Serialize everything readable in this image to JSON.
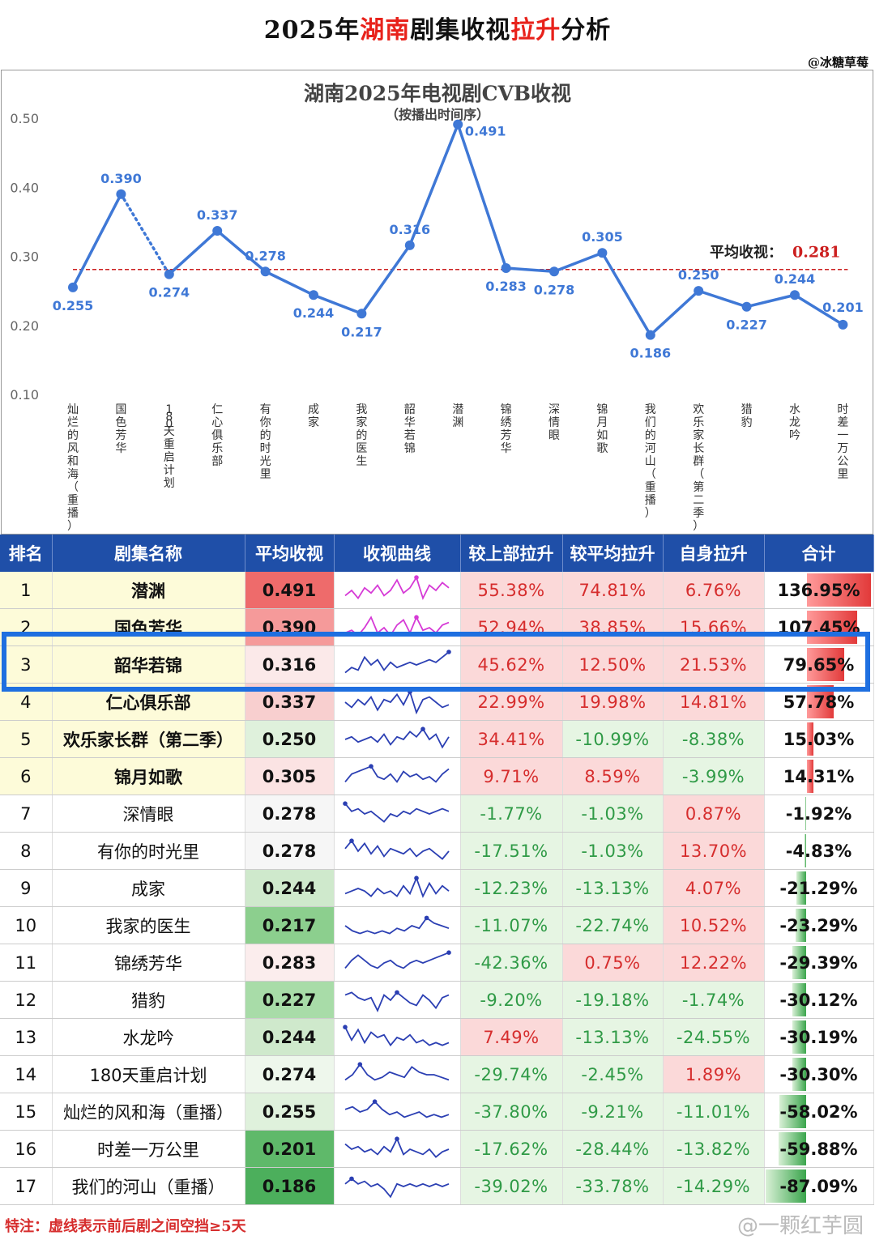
{
  "header": {
    "title_pre": "2025年",
    "title_red1": "湖南",
    "title_mid": "剧集收视",
    "title_red2": "拉升",
    "title_post": "分析",
    "handle": "@冰糖草莓"
  },
  "chart_data": {
    "type": "line",
    "title": "湖南2025年电视剧CVB收视",
    "subtitle": "（按播出时间序）",
    "categories": [
      "灿烂的风和海（重播）",
      "国色芳华",
      "180天重启计划",
      "仁心俱乐部",
      "有你的时光里",
      "成家",
      "我家的医生",
      "韶华若锦",
      "潜渊",
      "锦绣芳华",
      "深情眼",
      "锦月如歌",
      "我们的河山（重播）",
      "欢乐家长群（第二季）",
      "猎豹",
      "水龙吟",
      "时差一万公里"
    ],
    "values": [
      0.255,
      0.39,
      0.274,
      0.337,
      0.278,
      0.244,
      0.217,
      0.316,
      0.491,
      0.283,
      0.278,
      0.305,
      0.186,
      0.25,
      0.227,
      0.244,
      0.201
    ],
    "value_labels": [
      "0.255",
      "0.390",
      "0.274",
      "0.337",
      "0.278",
      "0.244",
      "0.217",
      "0.316",
      "0.491",
      "0.283",
      "0.278",
      "0.305",
      "0.186",
      "0.250",
      "0.227",
      "0.244",
      "0.201"
    ],
    "dashed_segment_index": 1,
    "yticks": [
      "0.50",
      "0.40",
      "0.30",
      "0.20",
      "0.10"
    ],
    "ylim": [
      0.1,
      0.5
    ],
    "average": {
      "label": "平均收视：",
      "value": 0.281,
      "value_text": "0.281",
      "color": "#cc1f1f"
    },
    "line_color": "#3f78d6"
  },
  "table": {
    "headers": [
      "排名",
      "剧集名称",
      "平均收视",
      "收视曲线",
      "较上部拉升",
      "较平均拉升",
      "自身拉升",
      "合计"
    ],
    "rows": [
      {
        "rank": "1",
        "name": "潜渊",
        "avg": "0.491",
        "avg_color": "#ee6b6b",
        "prev": "55.38%",
        "mean": "74.81%",
        "self": "6.76%",
        "total": "136.95%",
        "total_val": 136.95,
        "bold": true,
        "spark": [
          0.3,
          0.5,
          0.2,
          0.6,
          0.4,
          0.7,
          0.3,
          0.5,
          0.9,
          0.4,
          0.6,
          1.0,
          0.2,
          0.7,
          0.5,
          0.8,
          0.6
        ],
        "spark_color": "#d63ad6",
        "peak": 11
      },
      {
        "rank": "2",
        "name": "国色芳华",
        "avg": "0.390",
        "avg_color": "#f59a9a",
        "prev": "52.94%",
        "mean": "38.85%",
        "self": "15.66%",
        "total": "107.45%",
        "total_val": 107.45,
        "bold": true,
        "spark": [
          0.3,
          0.4,
          0.2,
          0.5,
          0.9,
          0.3,
          0.5,
          0.2,
          0.6,
          0.8,
          0.3,
          0.9,
          0.4,
          0.5,
          0.3,
          0.6,
          0.7
        ],
        "spark_color": "#d63ad6",
        "peak": 11
      },
      {
        "rank": "3",
        "name": "韶华若锦",
        "avg": "0.316",
        "avg_color": "#fbe9e9",
        "prev": "45.62%",
        "mean": "12.50%",
        "self": "21.53%",
        "total": "79.65%",
        "total_val": 79.65,
        "bold": true,
        "spark": [
          0.2,
          0.4,
          0.3,
          0.8,
          0.5,
          0.7,
          0.3,
          0.6,
          0.4,
          0.5,
          0.6,
          0.5,
          0.6,
          0.7,
          0.6,
          0.8,
          1.0
        ],
        "spark_color": "#2b3fb3",
        "peak": 16
      },
      {
        "rank": "4",
        "name": "仁心俱乐部",
        "avg": "0.337",
        "avg_color": "#f8cfcf",
        "prev": "22.99%",
        "mean": "19.98%",
        "self": "14.81%",
        "total": "57.78%",
        "total_val": 57.78,
        "bold": true,
        "spark": [
          0.5,
          0.3,
          0.6,
          0.4,
          0.7,
          0.2,
          0.6,
          0.5,
          0.8,
          0.4,
          0.9,
          0.1,
          0.6,
          0.7,
          0.5,
          0.3,
          0.4
        ],
        "spark_color": "#2b3fb3",
        "peak": 10
      },
      {
        "rank": "5",
        "name": "欢乐家长群（第二季）",
        "avg": "0.250",
        "avg_color": "#dff1dc",
        "prev": "34.41%",
        "mean": "-10.99%",
        "self": "-8.38%",
        "total": "15.03%",
        "total_val": 15.03,
        "bold": true,
        "spark": [
          0.5,
          0.6,
          0.4,
          0.5,
          0.6,
          0.4,
          0.7,
          0.3,
          0.6,
          0.5,
          0.8,
          0.6,
          0.9,
          0.5,
          0.7,
          0.2,
          0.6
        ],
        "spark_color": "#2b3fb3",
        "peak": 12
      },
      {
        "rank": "6",
        "name": "锦月如歌",
        "avg": "0.305",
        "avg_color": "#fbe3e3",
        "prev": "9.71%",
        "mean": "8.59%",
        "self": "-3.99%",
        "total": "14.31%",
        "total_val": 14.31,
        "bold": true,
        "spark": [
          0.3,
          0.6,
          0.7,
          0.8,
          0.9,
          0.5,
          0.4,
          0.6,
          0.3,
          0.7,
          0.5,
          0.6,
          0.4,
          0.5,
          0.3,
          0.6,
          0.8
        ],
        "spark_color": "#2b3fb3",
        "peak": 4
      },
      {
        "rank": "7",
        "name": "深情眼",
        "avg": "0.278",
        "avg_color": "#f6f6f6",
        "prev": "-1.77%",
        "mean": "-1.03%",
        "self": "0.87%",
        "total": "-1.92%",
        "total_val": -1.92,
        "bold": false,
        "spark": [
          0.9,
          0.6,
          0.7,
          0.5,
          0.6,
          0.4,
          0.2,
          0.5,
          0.4,
          0.6,
          0.5,
          0.7,
          0.6,
          0.5,
          0.6,
          0.7,
          0.6
        ],
        "spark_color": "#2b3fb3",
        "peak": 0
      },
      {
        "rank": "8",
        "name": "有你的时光里",
        "avg": "0.278",
        "avg_color": "#f6f6f6",
        "prev": "-17.51%",
        "mean": "-1.03%",
        "self": "13.70%",
        "total": "-4.83%",
        "total_val": -4.83,
        "bold": false,
        "spark": [
          0.6,
          0.9,
          0.5,
          0.8,
          0.4,
          0.7,
          0.3,
          0.6,
          0.5,
          0.4,
          0.6,
          0.3,
          0.5,
          0.6,
          0.4,
          0.2,
          0.5
        ],
        "spark_color": "#2b3fb3",
        "peak": 1
      },
      {
        "rank": "9",
        "name": "成家",
        "avg": "0.244",
        "avg_color": "#cfe9cc",
        "prev": "-12.23%",
        "mean": "-13.13%",
        "self": "4.07%",
        "total": "-21.29%",
        "total_val": -21.29,
        "bold": false,
        "spark": [
          0.3,
          0.4,
          0.5,
          0.4,
          0.2,
          0.5,
          0.3,
          0.4,
          0.2,
          0.6,
          0.3,
          0.9,
          0.2,
          0.7,
          0.3,
          0.6,
          0.4
        ],
        "spark_color": "#2b3fb3",
        "peak": 11
      },
      {
        "rank": "10",
        "name": "我家的医生",
        "avg": "0.217",
        "avg_color": "#8ccf8e",
        "prev": "-11.07%",
        "mean": "-22.74%",
        "self": "10.52%",
        "total": "-23.29%",
        "total_val": -23.29,
        "bold": false,
        "spark": [
          0.5,
          0.3,
          0.2,
          0.3,
          0.2,
          0.3,
          0.2,
          0.4,
          0.3,
          0.5,
          0.4,
          0.8,
          0.6,
          0.5,
          0.4
        ],
        "spark_color": "#2b3fb3",
        "peak": 11
      },
      {
        "rank": "11",
        "name": "锦绣芳华",
        "avg": "0.283",
        "avg_color": "#fbeded",
        "prev": "-42.36%",
        "mean": "0.75%",
        "self": "12.22%",
        "total": "-29.39%",
        "total_val": -29.39,
        "bold": false,
        "spark": [
          0.3,
          0.6,
          0.8,
          0.6,
          0.4,
          0.3,
          0.5,
          0.6,
          0.4,
          0.3,
          0.5,
          0.6,
          0.5,
          0.6,
          0.7,
          0.8,
          0.9
        ],
        "spark_color": "#2b3fb3",
        "peak": 16
      },
      {
        "rank": "12",
        "name": "猎豹",
        "avg": "0.227",
        "avg_color": "#a8dca8",
        "prev": "-9.20%",
        "mean": "-19.18%",
        "self": "-1.74%",
        "total": "-30.12%",
        "total_val": -30.12,
        "bold": false,
        "spark": [
          0.7,
          0.8,
          0.6,
          0.5,
          0.6,
          0.1,
          0.7,
          0.5,
          0.8,
          0.6,
          0.4,
          0.3,
          0.7,
          0.5,
          0.2,
          0.6,
          0.7
        ],
        "spark_color": "#2b3fb3",
        "peak": 8
      },
      {
        "rank": "13",
        "name": "水龙吟",
        "avg": "0.244",
        "avg_color": "#cfe9cc",
        "prev": "7.49%",
        "mean": "-13.13%",
        "self": "-24.55%",
        "total": "-30.19%",
        "total_val": -30.19,
        "bold": false,
        "spark": [
          0.9,
          0.4,
          0.8,
          0.3,
          0.7,
          0.5,
          0.6,
          0.2,
          0.5,
          0.4,
          0.6,
          0.3,
          0.4,
          0.2,
          0.3,
          0.2,
          0.3
        ],
        "spark_color": "#2b3fb3",
        "peak": 0
      },
      {
        "rank": "14",
        "name": "180天重启计划",
        "avg": "0.274",
        "avg_color": "#eef7ec",
        "prev": "-29.74%",
        "mean": "-2.45%",
        "self": "1.89%",
        "total": "-30.30%",
        "total_val": -30.3,
        "bold": false,
        "spark": [
          0.3,
          0.5,
          0.9,
          0.5,
          0.3,
          0.4,
          0.6,
          0.5,
          0.4,
          0.8,
          0.6,
          0.5,
          0.5,
          0.4,
          0.3
        ],
        "spark_color": "#2b3fb3",
        "peak": 2
      },
      {
        "rank": "15",
        "name": "灿烂的风和海（重播）",
        "avg": "0.255",
        "avg_color": "#dff1dc",
        "prev": "-37.80%",
        "mean": "-9.21%",
        "self": "-11.01%",
        "total": "-58.02%",
        "total_val": -58.02,
        "bold": false,
        "spark": [
          0.6,
          0.7,
          0.5,
          0.6,
          0.9,
          0.6,
          0.4,
          0.5,
          0.3,
          0.4,
          0.5,
          0.3,
          0.4,
          0.3,
          0.4
        ],
        "spark_color": "#2b3fb3",
        "peak": 4
      },
      {
        "rank": "16",
        "name": "时差一万公里",
        "avg": "0.201",
        "avg_color": "#5fb96a",
        "prev": "-17.62%",
        "mean": "-28.44%",
        "self": "-13.82%",
        "total": "-59.88%",
        "total_val": -59.88,
        "bold": false,
        "spark": [
          0.7,
          0.5,
          0.6,
          0.4,
          0.5,
          0.3,
          0.6,
          0.4,
          0.9,
          0.3,
          0.5,
          0.4,
          0.3,
          0.5,
          0.2,
          0.4,
          0.5
        ],
        "spark_color": "#2b3fb3",
        "peak": 8
      },
      {
        "rank": "17",
        "name": "我们的河山（重播）",
        "avg": "0.186",
        "avg_color": "#4caf5c",
        "prev": "-39.02%",
        "mean": "-33.78%",
        "self": "-14.29%",
        "total": "-87.09%",
        "total_val": -87.09,
        "bold": false,
        "spark": [
          0.6,
          0.8,
          0.6,
          0.7,
          0.5,
          0.6,
          0.4,
          0.1,
          0.6,
          0.5,
          0.6,
          0.5,
          0.6,
          0.5,
          0.6,
          0.5,
          0.6
        ],
        "spark_color": "#2b3fb3",
        "peak": 1
      }
    ]
  },
  "footnote": "特注：虚线表示前后剧之间空挡≥5天",
  "watermark": "@一颗红芋圆"
}
